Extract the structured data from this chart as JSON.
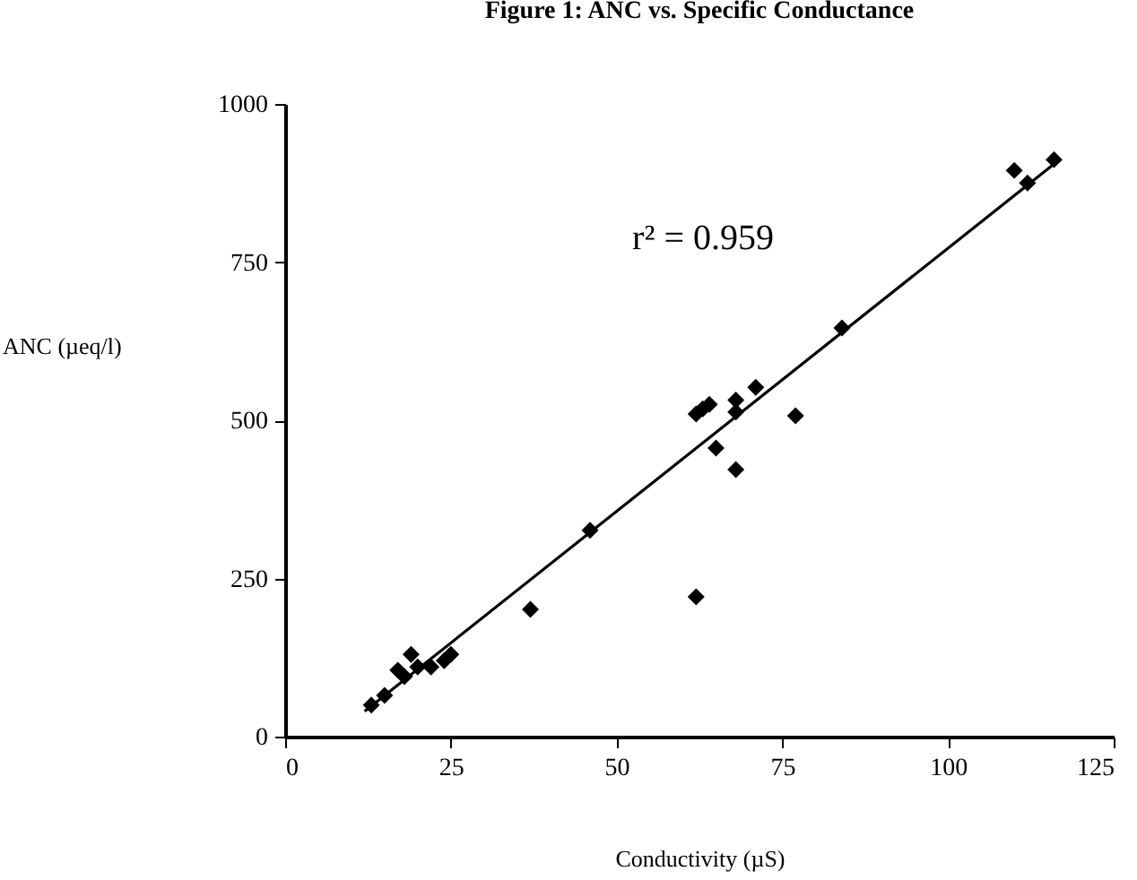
{
  "chart_data": {
    "type": "scatter",
    "title": "Figure 1: ANC vs. Specific Conductance",
    "xlabel": "Conductivity (µS)",
    "ylabel": "ANC (µeq/l)",
    "annotations": [
      "r² = 0.959"
    ],
    "xlim": [
      0,
      125
    ],
    "xticks": [
      0,
      25,
      50,
      75,
      100,
      125
    ],
    "ylim": [
      0,
      1000
    ],
    "yticks": [
      0,
      250,
      500,
      750,
      1000
    ],
    "grid": false,
    "marker": "diamond",
    "series": [
      {
        "color": "#000000",
        "x": [
          13,
          15,
          17,
          18,
          19,
          20,
          21,
          22,
          24,
          25,
          37,
          46,
          62,
          62,
          63,
          64,
          65,
          68,
          68,
          68,
          71,
          77,
          84,
          110,
          112,
          116
        ],
        "values": [
          50,
          65,
          105,
          95,
          130,
          110,
          null,
          110,
          120,
          130,
          201,
          326,
          221,
          510,
          518,
          525,
          456,
          532,
          513,
          422,
          552,
          507,
          646,
          895,
          875,
          912
        ]
      },
      {
        "type": "line",
        "color": "#000000",
        "marker": "none",
        "x": [
          12,
          116
        ],
        "values": [
          40,
          905
        ]
      }
    ]
  }
}
